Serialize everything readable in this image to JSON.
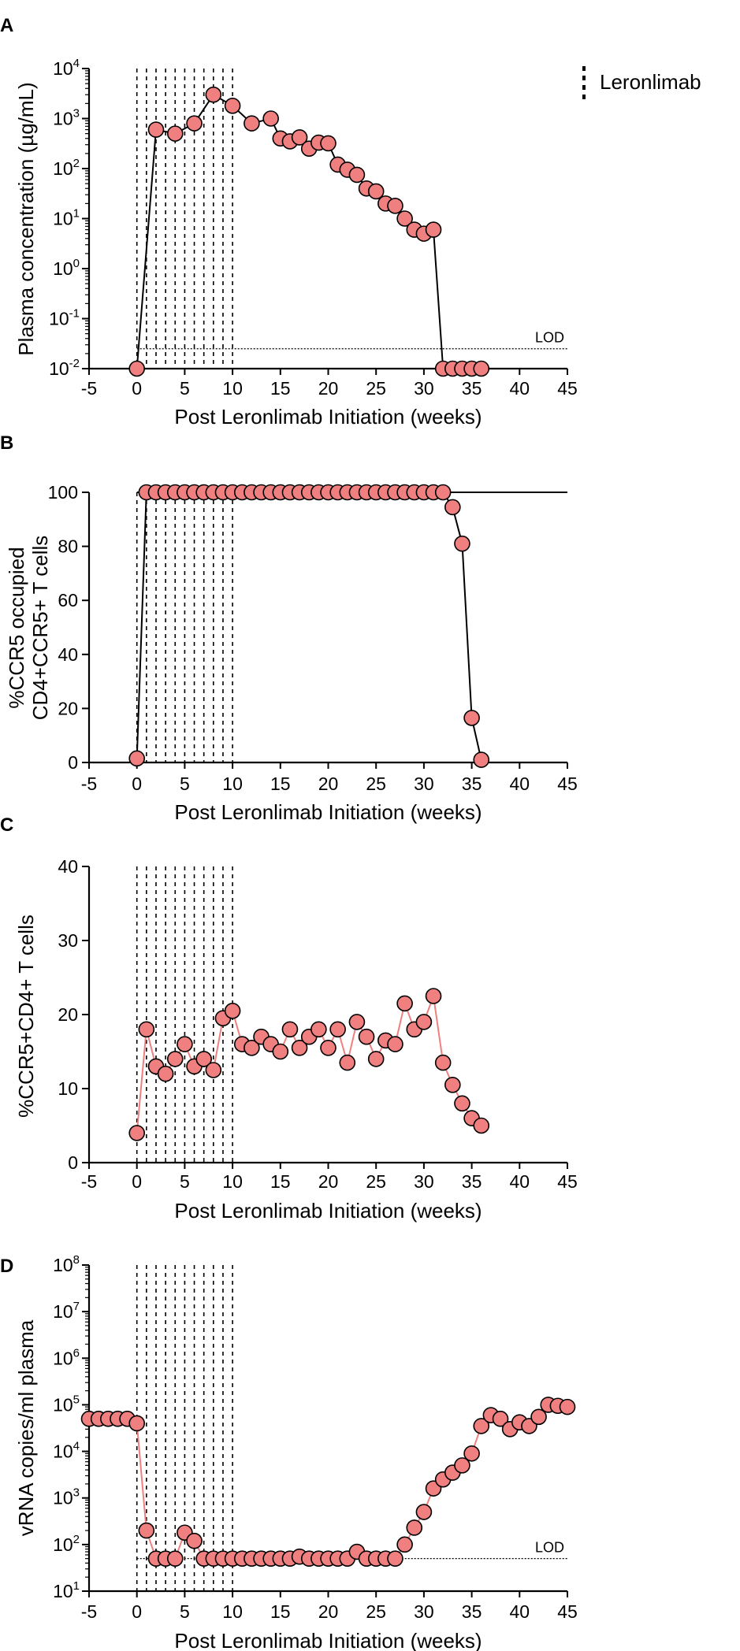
{
  "legend": {
    "label": "Leronlimab"
  },
  "colors": {
    "marker_fill": "#F08080",
    "line_dark": "#000000",
    "line_light": "#F08080",
    "axis": "#000000"
  },
  "chart_data": [
    {
      "type": "scatter",
      "panel": "A",
      "title": "",
      "xlabel": "Post Leronlimab Initiation (weeks)",
      "ylabel": "Plasma concentration (µg/mL)",
      "xlim": [
        -5,
        45
      ],
      "xticks": [
        -5,
        0,
        5,
        10,
        15,
        20,
        25,
        30,
        35,
        40,
        45
      ],
      "xtick_labels": [
        "-5",
        "0",
        "5",
        "10",
        "15",
        "20",
        "25",
        "30",
        "35",
        "40",
        "45"
      ],
      "yscale": "log",
      "ylim": [
        0.01,
        10000
      ],
      "ytick_labels": [
        {
          "base": "10",
          "exp": "4",
          "value": 10000
        },
        {
          "base": "10",
          "exp": "3",
          "value": 1000
        },
        {
          "base": "10",
          "exp": "2",
          "value": 100
        },
        {
          "base": "10",
          "exp": "1",
          "value": 10
        },
        {
          "base": "10",
          "exp": "0",
          "value": 1
        },
        {
          "base": "10",
          "exp": "-1",
          "value": 0.1
        },
        {
          "base": "10",
          "exp": "-2",
          "value": 0.01
        }
      ],
      "reference_line": {
        "label": "LOD",
        "value": 0.025
      },
      "dose_weeks": [
        0,
        1,
        2,
        3,
        4,
        5,
        6,
        7,
        8,
        9,
        10
      ],
      "series": [
        {
          "name": "Plasma concentration",
          "x": [
            0,
            2,
            4,
            6,
            8,
            10,
            12,
            14,
            15,
            16,
            17,
            18,
            19,
            20,
            21,
            22,
            23,
            24,
            25,
            26,
            27,
            28,
            29,
            30,
            31,
            32,
            33,
            34,
            35,
            36
          ],
          "y": [
            0.01,
            600,
            500,
            800,
            3000,
            1800,
            800,
            1000,
            400,
            350,
            420,
            250,
            330,
            320,
            120,
            95,
            75,
            40,
            35,
            20,
            18,
            10,
            6,
            5,
            6,
            0.01,
            0.01,
            0.01,
            0.01,
            0.01
          ]
        }
      ]
    },
    {
      "type": "scatter",
      "panel": "B",
      "title": "",
      "xlabel": "Post Leronlimab Initiation (weeks)",
      "ylabel": [
        "%CCR5 occupied",
        "CD4+CCR5+ T cells"
      ],
      "xlim": [
        -5,
        45
      ],
      "xticks": [
        -5,
        0,
        5,
        10,
        15,
        20,
        25,
        30,
        35,
        40,
        45
      ],
      "xtick_labels": [
        "-5",
        "0",
        "5",
        "10",
        "15",
        "20",
        "25",
        "30",
        "35",
        "40",
        "45"
      ],
      "ylim": [
        0,
        100
      ],
      "yticks": [
        0,
        20,
        40,
        60,
        80,
        100
      ],
      "ytick_labels": [
        "0",
        "20",
        "40",
        "60",
        "80",
        "100"
      ],
      "reference_line": {
        "label": "",
        "value": 100
      },
      "dose_weeks": [
        0,
        1,
        2,
        3,
        4,
        5,
        6,
        7,
        8,
        9,
        10
      ],
      "series": [
        {
          "name": "%CCR5 occupied",
          "x": [
            0,
            1,
            2,
            3,
            4,
            5,
            6,
            7,
            8,
            9,
            10,
            11,
            12,
            13,
            14,
            15,
            16,
            17,
            18,
            19,
            20,
            21,
            22,
            23,
            24,
            25,
            26,
            27,
            28,
            29,
            30,
            31,
            32,
            33,
            34,
            35,
            36
          ],
          "y": [
            1.5,
            100,
            100,
            100,
            100,
            100,
            100,
            100,
            100,
            100,
            100,
            100,
            100,
            100,
            100,
            100,
            100,
            100,
            100,
            100,
            100,
            100,
            100,
            100,
            100,
            100,
            100,
            100,
            100,
            100,
            100,
            100,
            100,
            94.5,
            81,
            16.5,
            1
          ]
        }
      ]
    },
    {
      "type": "scatter",
      "panel": "C",
      "title": "",
      "xlabel": "Post Leronlimab Initiation (weeks)",
      "ylabel": "%CCR5+CD4+ T cells",
      "xlim": [
        -5,
        45
      ],
      "xticks": [
        -5,
        0,
        5,
        10,
        15,
        20,
        25,
        30,
        35,
        40,
        45
      ],
      "xtick_labels": [
        "-5",
        "0",
        "5",
        "10",
        "15",
        "20",
        "25",
        "30",
        "35",
        "40",
        "45"
      ],
      "ylim": [
        0,
        40
      ],
      "yticks": [
        0,
        10,
        20,
        30,
        40
      ],
      "ytick_labels": [
        "0",
        "10",
        "20",
        "30",
        "40"
      ],
      "dose_weeks": [
        0,
        1,
        2,
        3,
        4,
        5,
        6,
        7,
        8,
        9,
        10
      ],
      "series": [
        {
          "name": "%CCR5+CD4+ T cells",
          "x": [
            0,
            1,
            2,
            3,
            4,
            5,
            6,
            7,
            8,
            9,
            10,
            11,
            12,
            13,
            14,
            15,
            16,
            17,
            18,
            19,
            20,
            21,
            22,
            23,
            24,
            25,
            26,
            27,
            28,
            29,
            30,
            31,
            32,
            33,
            34,
            35,
            36
          ],
          "y": [
            4,
            18,
            13,
            12,
            14,
            16,
            13,
            14,
            12.5,
            19.5,
            20.5,
            16,
            15.5,
            17,
            16,
            15,
            18,
            15.5,
            17,
            18,
            15.5,
            18,
            13.5,
            19,
            17,
            14,
            16.5,
            16,
            21.5,
            18,
            19,
            22.5,
            13.5,
            10.5,
            8,
            6,
            5
          ]
        }
      ]
    },
    {
      "type": "scatter",
      "panel": "D",
      "title": "",
      "xlabel": "Post Leronlimab Initiation (weeks)",
      "ylabel": "vRNA copies/ml plasma",
      "xlim": [
        -5,
        45
      ],
      "xticks": [
        -5,
        0,
        5,
        10,
        15,
        20,
        25,
        30,
        35,
        40,
        45
      ],
      "xtick_labels": [
        "-5",
        "0",
        "5",
        "10",
        "15",
        "20",
        "25",
        "30",
        "35",
        "40",
        "45"
      ],
      "yscale": "log",
      "ylim": [
        10,
        100000000
      ],
      "ytick_labels": [
        {
          "base": "10",
          "exp": "8",
          "value": 100000000
        },
        {
          "base": "10",
          "exp": "7",
          "value": 10000000
        },
        {
          "base": "10",
          "exp": "6",
          "value": 1000000
        },
        {
          "base": "10",
          "exp": "5",
          "value": 100000
        },
        {
          "base": "10",
          "exp": "4",
          "value": 10000
        },
        {
          "base": "10",
          "exp": "3",
          "value": 1000
        },
        {
          "base": "10",
          "exp": "2",
          "value": 100
        },
        {
          "base": "10",
          "exp": "1",
          "value": 10
        }
      ],
      "reference_line": {
        "label": "LOD",
        "value": 50
      },
      "dose_weeks": [
        0,
        1,
        2,
        3,
        4,
        5,
        6,
        7,
        8,
        9,
        10
      ],
      "series": [
        {
          "name": "vRNA copies/ml plasma",
          "x": [
            -5,
            -4,
            -3,
            -2,
            -1,
            0,
            1,
            2,
            3,
            4,
            5,
            6,
            7,
            8,
            9,
            10,
            11,
            12,
            13,
            14,
            15,
            16,
            17,
            18,
            19,
            20,
            21,
            22,
            23,
            24,
            25,
            26,
            27,
            28,
            29,
            30,
            31,
            32,
            33,
            34,
            35,
            36,
            37,
            38,
            39,
            40,
            41,
            42,
            43,
            44,
            45
          ],
          "y": [
            50000,
            50000,
            50000,
            50000,
            50000,
            40000,
            200,
            50,
            50,
            50,
            180,
            120,
            50,
            50,
            50,
            50,
            50,
            50,
            50,
            50,
            50,
            50,
            55,
            50,
            50,
            50,
            50,
            50,
            70,
            50,
            50,
            50,
            50,
            100,
            230,
            500,
            1600,
            2500,
            3500,
            5000,
            9000,
            35000,
            60000,
            50000,
            30000,
            42000,
            35000,
            55000,
            100000,
            95000,
            90000
          ]
        }
      ]
    }
  ]
}
